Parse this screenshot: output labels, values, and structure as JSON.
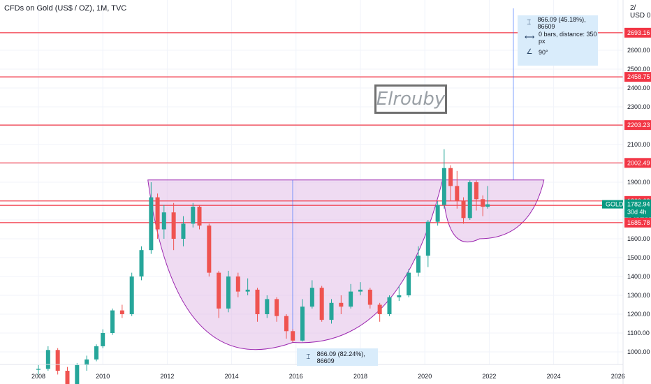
{
  "title": "CFDs on Gold (US$ / OZ), 1M, TVC",
  "currency": "USD",
  "watermark": "Elrouby",
  "measure_top": {
    "row1": "866.09 (45.18%), 86609",
    "row2": "0 bars, distance: 350 px",
    "row3": "90°"
  },
  "measure_bottom": {
    "row1": "866.09 (82.24%), 86609"
  },
  "colors": {
    "up": "#26a69a",
    "down": "#ef5350",
    "hline": "#f23645",
    "fill": "#e1bee7",
    "fill_stroke": "#9c27b0",
    "gold_label": "#089981",
    "measure": "#2962ff"
  },
  "chart_data": {
    "type": "candlestick",
    "symbol": "GOLD",
    "timeframe": "1M",
    "x_ticks": [
      "2008",
      "2010",
      "2012",
      "2014",
      "2016",
      "2018",
      "2020",
      "2022",
      "2024",
      "2026"
    ],
    "y_ticks": [
      1000,
      1100,
      1200,
      1300,
      1400,
      1500,
      1600,
      1700,
      1800,
      1900,
      2000,
      2100,
      2200,
      2300,
      2400,
      2500,
      2600
    ],
    "y_tick_labels": [
      "1000.00",
      "1100.00",
      "1200.00",
      "1300.00",
      "1400.00",
      "1500.00",
      "1600.00",
      "1700.00",
      "1800.00",
      "1900.00",
      "2000.00",
      "2100.00",
      "2200.00",
      "2300.00",
      "2400.00",
      "2500.00",
      "2600.00"
    ],
    "horizontal_levels": [
      2693.16,
      2458.75,
      2203.23,
      2002.49,
      1800.63,
      1777.33,
      1685.78
    ],
    "horizontal_level_labels": [
      "2693.16",
      "2458.75",
      "2203.23",
      "2002.49",
      "1800.63",
      "1777.33",
      "1685.78"
    ],
    "last_price": 1782.94,
    "last_price_label": "1782.94",
    "countdown": "30d 4h",
    "top_axis_partial_label": "2/",
    "top_axis_partial_value": "0",
    "cup_rim": 1912,
    "cup_bottom": 1050,
    "handle_bottom": 1600,
    "candles": [
      [
        2008.0,
        905,
        930,
        880,
        910
      ],
      [
        2008.3,
        910,
        1030,
        900,
        1010
      ],
      [
        2008.6,
        1010,
        1020,
        880,
        900
      ],
      [
        2008.9,
        900,
        920,
        730,
        760
      ],
      [
        2009.2,
        760,
        940,
        750,
        930
      ],
      [
        2009.5,
        930,
        980,
        900,
        960
      ],
      [
        2009.8,
        960,
        1040,
        950,
        1030
      ],
      [
        2010.0,
        1030,
        1120,
        1020,
        1100
      ],
      [
        2010.3,
        1100,
        1230,
        1090,
        1220
      ],
      [
        2010.6,
        1220,
        1250,
        1180,
        1200
      ],
      [
        2010.9,
        1200,
        1420,
        1190,
        1400
      ],
      [
        2011.2,
        1400,
        1560,
        1380,
        1540
      ],
      [
        2011.5,
        1540,
        1900,
        1520,
        1820
      ],
      [
        2011.7,
        1820,
        1840,
        1600,
        1650
      ],
      [
        2011.9,
        1650,
        1780,
        1600,
        1740
      ],
      [
        2012.2,
        1740,
        1790,
        1540,
        1600
      ],
      [
        2012.5,
        1600,
        1720,
        1560,
        1680
      ],
      [
        2012.8,
        1680,
        1790,
        1660,
        1770
      ],
      [
        2013.0,
        1770,
        1780,
        1650,
        1670
      ],
      [
        2013.3,
        1670,
        1680,
        1400,
        1420
      ],
      [
        2013.6,
        1420,
        1430,
        1180,
        1230
      ],
      [
        2013.9,
        1230,
        1430,
        1210,
        1400
      ],
      [
        2014.2,
        1400,
        1420,
        1290,
        1320
      ],
      [
        2014.5,
        1320,
        1390,
        1300,
        1330
      ],
      [
        2014.8,
        1330,
        1340,
        1160,
        1200
      ],
      [
        2015.1,
        1200,
        1300,
        1180,
        1280
      ],
      [
        2015.4,
        1280,
        1290,
        1160,
        1190
      ],
      [
        2015.7,
        1190,
        1200,
        1070,
        1110
      ],
      [
        2015.9,
        1110,
        1120,
        1050,
        1060
      ],
      [
        2016.2,
        1060,
        1280,
        1055,
        1240
      ],
      [
        2016.5,
        1240,
        1380,
        1230,
        1340
      ],
      [
        2016.8,
        1340,
        1350,
        1160,
        1170
      ],
      [
        2017.1,
        1170,
        1280,
        1150,
        1260
      ],
      [
        2017.4,
        1260,
        1300,
        1200,
        1240
      ],
      [
        2017.7,
        1240,
        1360,
        1230,
        1320
      ],
      [
        2018.0,
        1320,
        1370,
        1300,
        1330
      ],
      [
        2018.3,
        1330,
        1340,
        1230,
        1250
      ],
      [
        2018.6,
        1250,
        1260,
        1160,
        1200
      ],
      [
        2018.9,
        1200,
        1300,
        1190,
        1290
      ],
      [
        2019.2,
        1290,
        1350,
        1270,
        1300
      ],
      [
        2019.5,
        1300,
        1440,
        1290,
        1420
      ],
      [
        2019.8,
        1420,
        1560,
        1400,
        1510
      ],
      [
        2020.1,
        1510,
        1700,
        1450,
        1690
      ],
      [
        2020.4,
        1690,
        1800,
        1670,
        1780
      ],
      [
        2020.6,
        1780,
        2075,
        1760,
        1975
      ],
      [
        2020.8,
        1975,
        1990,
        1800,
        1880
      ],
      [
        2021.0,
        1880,
        1960,
        1760,
        1800
      ],
      [
        2021.2,
        1800,
        1820,
        1680,
        1710
      ],
      [
        2021.4,
        1710,
        1910,
        1700,
        1900
      ],
      [
        2021.6,
        1900,
        1910,
        1750,
        1810
      ],
      [
        2021.8,
        1810,
        1830,
        1720,
        1770
      ],
      [
        2021.95,
        1770,
        1880,
        1760,
        1783
      ]
    ]
  }
}
